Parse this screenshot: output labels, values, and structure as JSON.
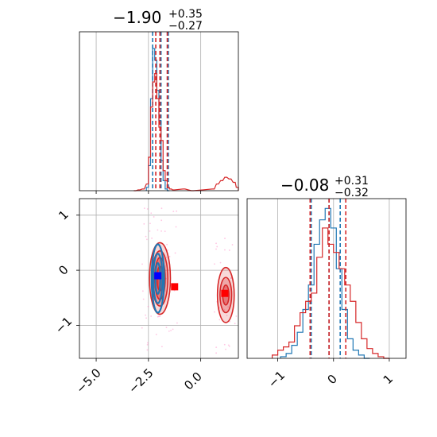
{
  "colors": {
    "blue": "#1f77b4",
    "red": "#d62728",
    "grid": "#b0b0b0",
    "pink": "#ff80c0"
  },
  "chart_data": [
    {
      "type": "histogram",
      "panel": "x-marginal",
      "title_main": "−1.90",
      "title_sup": "+0.35",
      "title_sub": "−0.27",
      "grid": true,
      "xlim": [
        -5.8,
        1.8
      ],
      "series": [
        {
          "name": "",
          "color": "#1f77b4",
          "centers": [
            -2.55,
            -2.45,
            -2.35,
            -2.25,
            -2.15,
            -2.05,
            -1.95,
            -1.85,
            -1.75,
            -1.65,
            -1.55
          ],
          "values": [
            0.02,
            0.15,
            0.55,
            0.85,
            0.78,
            0.6,
            0.42,
            0.18,
            0.06,
            0.01,
            0.0
          ],
          "quantiles": [
            -2.3,
            -1.9,
            -1.55
          ]
        },
        {
          "name": "",
          "color": "#d62728",
          "centers": [
            -3.15,
            -2.95,
            -2.75,
            -2.55,
            -2.45,
            -2.35,
            -2.25,
            -2.15,
            -2.05,
            -1.95,
            -1.85,
            -1.75,
            -1.65,
            -1.55,
            -1.45,
            -1.3,
            -0.8,
            -0.4,
            0.6,
            0.8,
            1.0,
            1.2,
            1.4,
            1.6,
            1.75
          ],
          "values": [
            0.0,
            0.005,
            0.01,
            0.04,
            0.2,
            0.5,
            0.65,
            0.7,
            0.55,
            0.38,
            0.3,
            0.12,
            0.06,
            0.02,
            0.01,
            0.005,
            0.01,
            0.0,
            0.01,
            0.04,
            0.06,
            0.08,
            0.07,
            0.05,
            0.02
          ],
          "quantiles": [
            -2.15,
            -1.95,
            -1.6
          ]
        }
      ]
    },
    {
      "type": "histogram",
      "panel": "y-marginal",
      "title_main": "−0.08",
      "title_sup": "+0.31",
      "title_sub": "−0.32",
      "grid": true,
      "xlim": [
        -1.55,
        1.3
      ],
      "ticks": [
        -1,
        0,
        1
      ],
      "tick_labels": [
        "−1",
        "0",
        "1"
      ],
      "series": [
        {
          "name": "",
          "color": "#1f77b4",
          "centers": [
            -0.9,
            -0.8,
            -0.7,
            -0.6,
            -0.5,
            -0.4,
            -0.3,
            -0.2,
            -0.1,
            0.0,
            0.1,
            0.2,
            0.3,
            0.4,
            0.5,
            0.6
          ],
          "values": [
            0.01,
            0.03,
            0.08,
            0.16,
            0.3,
            0.45,
            0.7,
            0.85,
            0.92,
            0.8,
            0.55,
            0.3,
            0.12,
            0.05,
            0.02,
            0.0
          ],
          "quantiles": [
            -0.4,
            -0.08,
            0.12
          ]
        },
        {
          "name": "",
          "color": "#d62728",
          "centers": [
            -1.05,
            -0.95,
            -0.85,
            -0.75,
            -0.65,
            -0.55,
            -0.45,
            -0.35,
            -0.25,
            -0.15,
            -0.05,
            0.05,
            0.15,
            0.25,
            0.35,
            0.45,
            0.55,
            0.65,
            0.75,
            0.85,
            0.95
          ],
          "values": [
            0.02,
            0.05,
            0.07,
            0.1,
            0.2,
            0.28,
            0.35,
            0.4,
            0.62,
            0.8,
            0.7,
            0.65,
            0.55,
            0.45,
            0.35,
            0.22,
            0.12,
            0.06,
            0.03,
            0.01,
            0.0
          ],
          "quantiles": [
            -0.42,
            -0.08,
            0.22
          ]
        }
      ]
    },
    {
      "type": "scatter",
      "panel": "joint",
      "grid": true,
      "xlim": [
        -5.8,
        1.8
      ],
      "ylim": [
        -1.6,
        1.3
      ],
      "xticks": [
        -5.0,
        -2.5,
        0.0
      ],
      "xtick_labels": [
        "−5.0",
        "−2.5",
        "0.0"
      ],
      "yticks": [
        1,
        0,
        -1
      ],
      "ytick_labels": [
        "1",
        "0",
        "−1"
      ],
      "regions": [
        {
          "color": "#d62728",
          "cx": -1.95,
          "cy": -0.15,
          "levels": [
            [
              0.5,
              0.65
            ],
            [
              0.38,
              0.5
            ],
            [
              0.25,
              0.38
            ],
            [
              0.14,
              0.22
            ]
          ]
        },
        {
          "color": "#d62728",
          "cx": 1.2,
          "cy": -0.45,
          "levels": [
            [
              0.4,
              0.5
            ],
            [
              0.28,
              0.32
            ],
            [
              0.15,
              0.18
            ]
          ]
        },
        {
          "color": "#1f77b4",
          "cx": -2.05,
          "cy": -0.15,
          "levels": [
            [
              0.3,
              0.62
            ],
            [
              0.22,
              0.45
            ],
            [
              0.12,
              0.28
            ]
          ]
        }
      ],
      "markers": [
        {
          "color": "#0000ff",
          "x": -2.05,
          "y": -0.1
        },
        {
          "color": "#ff0000",
          "x": -1.25,
          "y": -0.3
        },
        {
          "color": "#ff0000",
          "x": 1.15,
          "y": -0.42
        }
      ]
    }
  ]
}
